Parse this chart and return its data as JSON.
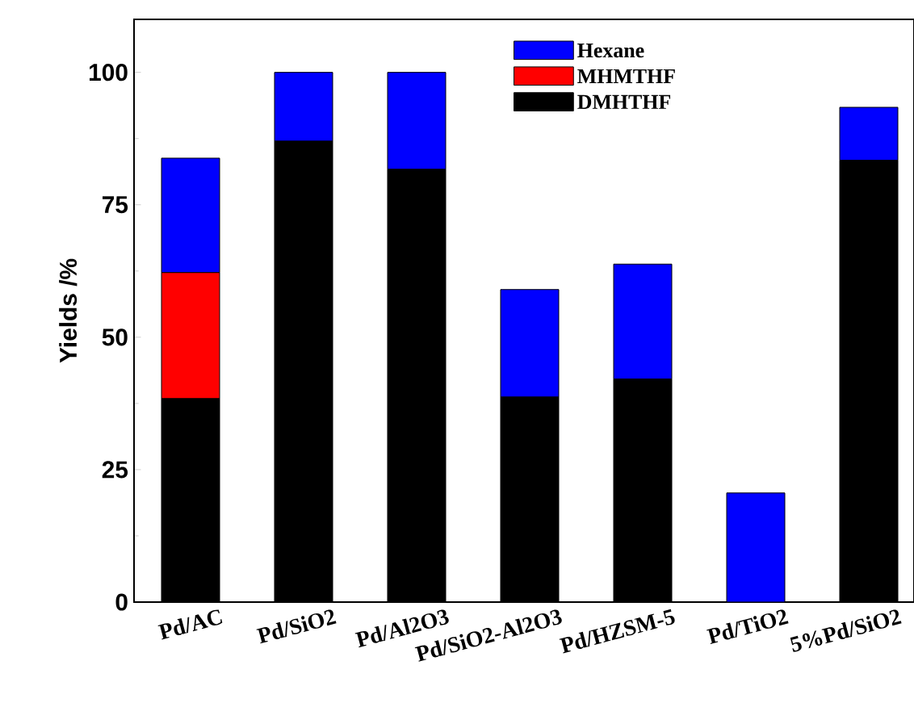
{
  "chart_data": {
    "type": "bar",
    "stacked": true,
    "ylabel": "Yields /%",
    "categories": [
      "Pd/AC",
      "Pd/SiO2",
      "Pd/Al2O3",
      "Pd/SiO2-Al2O3",
      "Pd/HZSM-5",
      "Pd/TiO2",
      "5%Pd/SiO2"
    ],
    "series": [
      {
        "name": "DMHTHF",
        "color": "#000000",
        "values": [
          38.4,
          87.0,
          81.7,
          38.7,
          42.1,
          0,
          83.4
        ]
      },
      {
        "name": "MHMTHF",
        "color": "#ff0000",
        "values": [
          23.8,
          0,
          0,
          0,
          0,
          0,
          0
        ]
      },
      {
        "name": "Hexane",
        "color": "#0000ff",
        "values": [
          21.6,
          13.0,
          18.3,
          20.3,
          21.7,
          20.6,
          10.0
        ]
      }
    ],
    "ylim": [
      0,
      110
    ],
    "yticks": [
      0,
      25,
      50,
      75,
      100
    ],
    "legend": "top right"
  }
}
